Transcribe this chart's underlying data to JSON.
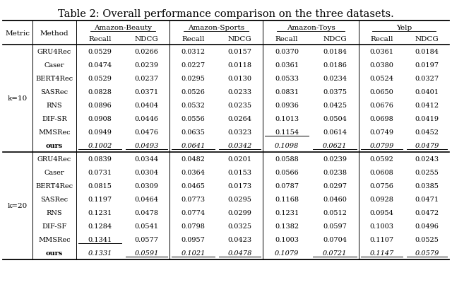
{
  "title": "Table 2: Overall performance comparison on the three datasets.",
  "methods_k10": [
    "GRU4Rec",
    "Caser",
    "BERT4Rec",
    "SASRec",
    "RNS",
    "DIF-SR",
    "MMSRec",
    "ours"
  ],
  "methods_k20": [
    "GRU4Rec",
    "Caser",
    "BERT4Rec",
    "SASRec",
    "RNS",
    "DIF-SF",
    "MMSRec",
    "ours"
  ],
  "datasets": [
    "Amazon-Beauty",
    "Amazon-Sports",
    "Amazon-Toys",
    "Yelp"
  ],
  "k10_data": {
    "GRU4Rec": [
      0.0529,
      0.0266,
      0.0312,
      0.0157,
      0.037,
      0.0184,
      0.0361,
      0.0184
    ],
    "Caser": [
      0.0474,
      0.0239,
      0.0227,
      0.0118,
      0.0361,
      0.0186,
      0.038,
      0.0197
    ],
    "BERT4Rec": [
      0.0529,
      0.0237,
      0.0295,
      0.013,
      0.0533,
      0.0234,
      0.0524,
      0.0327
    ],
    "SASRec": [
      0.0828,
      0.0371,
      0.0526,
      0.0233,
      0.0831,
      0.0375,
      0.065,
      0.0401
    ],
    "RNS": [
      0.0896,
      0.0404,
      0.0532,
      0.0235,
      0.0936,
      0.0425,
      0.0676,
      0.0412
    ],
    "DIF-SR": [
      0.0908,
      0.0446,
      0.0556,
      0.0264,
      0.1013,
      0.0504,
      0.0698,
      0.0419
    ],
    "MMSRec": [
      0.0949,
      0.0476,
      0.0635,
      0.0323,
      0.1154,
      0.0614,
      0.0749,
      0.0452
    ],
    "ours": [
      0.1002,
      0.0493,
      0.0641,
      0.0342,
      0.1098,
      0.0621,
      0.0799,
      0.0479
    ]
  },
  "k20_data": {
    "GRU4Rec": [
      0.0839,
      0.0344,
      0.0482,
      0.0201,
      0.0588,
      0.0239,
      0.0592,
      0.0243
    ],
    "Caser": [
      0.0731,
      0.0304,
      0.0364,
      0.0153,
      0.0566,
      0.0238,
      0.0608,
      0.0255
    ],
    "BERT4Rec": [
      0.0815,
      0.0309,
      0.0465,
      0.0173,
      0.0787,
      0.0297,
      0.0756,
      0.0385
    ],
    "SASRec": [
      0.1197,
      0.0464,
      0.0773,
      0.0295,
      0.1168,
      0.046,
      0.0928,
      0.0471
    ],
    "RNS": [
      0.1231,
      0.0478,
      0.0774,
      0.0299,
      0.1231,
      0.0512,
      0.0954,
      0.0472
    ],
    "DIF-SF": [
      0.1284,
      0.0541,
      0.0798,
      0.0325,
      0.1382,
      0.0597,
      0.1003,
      0.0496
    ],
    "MMSRec": [
      0.1341,
      0.0577,
      0.0957,
      0.0423,
      0.1003,
      0.0704,
      0.1107,
      0.0525
    ],
    "ours": [
      0.1331,
      0.0591,
      0.1021,
      0.0478,
      0.1079,
      0.0721,
      0.1147,
      0.0579
    ]
  },
  "k10_underline": {
    "GRU4Rec": [
      false,
      false,
      false,
      false,
      false,
      false,
      false,
      false
    ],
    "Caser": [
      false,
      false,
      false,
      false,
      false,
      false,
      false,
      false
    ],
    "BERT4Rec": [
      false,
      false,
      false,
      false,
      false,
      false,
      false,
      false
    ],
    "SASRec": [
      false,
      false,
      false,
      false,
      false,
      false,
      false,
      false
    ],
    "RNS": [
      false,
      false,
      false,
      false,
      false,
      false,
      false,
      false
    ],
    "DIF-SR": [
      false,
      false,
      false,
      false,
      false,
      false,
      false,
      false
    ],
    "MMSRec": [
      false,
      false,
      false,
      false,
      true,
      false,
      false,
      false
    ],
    "ours": [
      true,
      true,
      true,
      true,
      false,
      true,
      true,
      true
    ]
  },
  "k20_underline": {
    "GRU4Rec": [
      false,
      false,
      false,
      false,
      false,
      false,
      false,
      false
    ],
    "Caser": [
      false,
      false,
      false,
      false,
      false,
      false,
      false,
      false
    ],
    "BERT4Rec": [
      false,
      false,
      false,
      false,
      false,
      false,
      false,
      false
    ],
    "SASRec": [
      false,
      false,
      false,
      false,
      false,
      false,
      false,
      false
    ],
    "RNS": [
      false,
      false,
      false,
      false,
      false,
      false,
      false,
      false
    ],
    "DIF-SF": [
      false,
      false,
      false,
      false,
      false,
      false,
      false,
      false
    ],
    "MMSRec": [
      true,
      false,
      false,
      false,
      false,
      false,
      false,
      false
    ],
    "ours": [
      false,
      true,
      true,
      true,
      false,
      true,
      true,
      true
    ]
  },
  "title_fontsize": 10.5,
  "header_fontsize": 7.5,
  "cell_fontsize": 7.0
}
